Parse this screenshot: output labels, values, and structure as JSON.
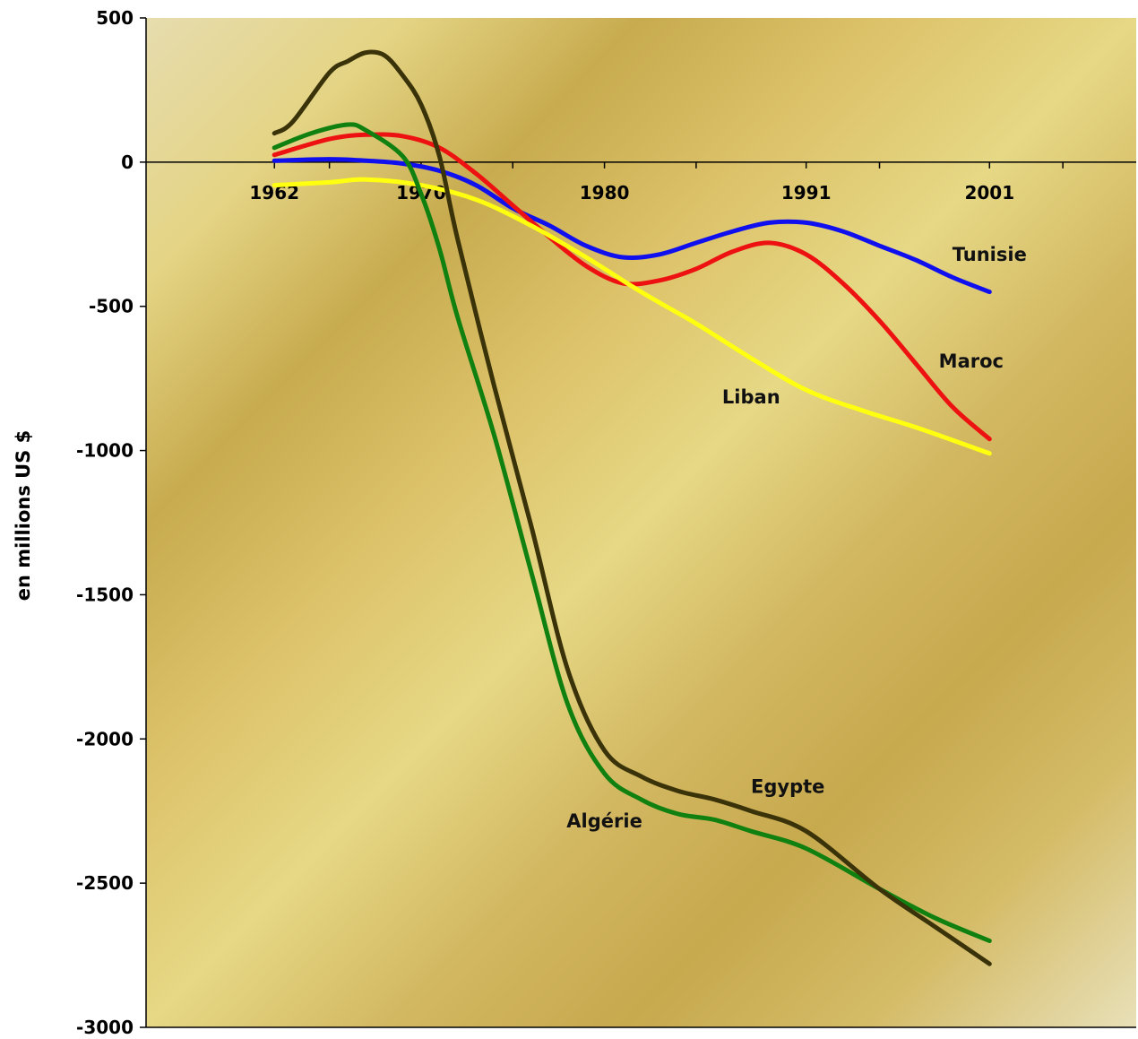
{
  "chart_data": {
    "type": "line",
    "title": "",
    "xlabel": "",
    "ylabel": "en millions US $",
    "xlim": [
      1955,
      2009
    ],
    "ylim": [
      -3000,
      500
    ],
    "y_ticks": [
      500,
      0,
      -500,
      -1000,
      -1500,
      -2000,
      -2500,
      -3000
    ],
    "x_tick_labels": [
      {
        "x": 1962,
        "label": "1962"
      },
      {
        "x": 1970,
        "label": "1970"
      },
      {
        "x": 1980,
        "label": "1980"
      },
      {
        "x": 1991,
        "label": "1991"
      },
      {
        "x": 2001,
        "label": "2001"
      }
    ],
    "x_minor_ticks": [
      1965,
      1975,
      1985,
      1995,
      2005
    ],
    "grid": false,
    "series": [
      {
        "name": "Tunisie",
        "color": "#1010ee",
        "x": [
          1962,
          1965,
          1967,
          1969,
          1971,
          1973,
          1975,
          1977,
          1979,
          1981,
          1983,
          1985,
          1987,
          1989,
          1991,
          1993,
          1995,
          1997,
          1999,
          2001
        ],
        "y": [
          5,
          10,
          5,
          -5,
          -30,
          -80,
          -160,
          -220,
          -290,
          -330,
          -320,
          -280,
          -240,
          -210,
          -210,
          -240,
          -290,
          -340,
          -400,
          -450
        ]
      },
      {
        "name": "Maroc",
        "color": "#ee1111",
        "x": [
          1962,
          1965,
          1967,
          1969,
          1971,
          1973,
          1975,
          1977,
          1979,
          1981,
          1983,
          1985,
          1987,
          1989,
          1991,
          1993,
          1995,
          1997,
          1999,
          2001
        ],
        "y": [
          25,
          80,
          95,
          90,
          50,
          -40,
          -150,
          -260,
          -360,
          -420,
          -410,
          -370,
          -310,
          -280,
          -320,
          -420,
          -550,
          -700,
          -850,
          -960
        ]
      },
      {
        "name": "Liban",
        "color": "#ffff10",
        "x": [
          1962,
          1965,
          1967,
          1970,
          1973,
          1976,
          1979,
          1982,
          1985,
          1988,
          1991,
          1994,
          1997,
          2001
        ],
        "y": [
          -80,
          -70,
          -60,
          -80,
          -130,
          -220,
          -330,
          -450,
          -560,
          -680,
          -790,
          -860,
          -920,
          -1010
        ]
      },
      {
        "name": "Algérie",
        "color": "#108010",
        "x": [
          1962,
          1964,
          1966,
          1967,
          1969,
          1970,
          1971,
          1972,
          1974,
          1976,
          1978,
          1980,
          1982,
          1984,
          1986,
          1988,
          1991,
          1995,
          1998,
          2001
        ],
        "y": [
          50,
          100,
          130,
          110,
          20,
          -110,
          -300,
          -540,
          -950,
          -1420,
          -1880,
          -2120,
          -2210,
          -2260,
          -2280,
          -2320,
          -2380,
          -2520,
          -2620,
          -2700
        ]
      },
      {
        "name": "Egypte",
        "color": "#3a3208",
        "x": [
          1962,
          1963,
          1965,
          1966,
          1967,
          1968,
          1969,
          1970,
          1971,
          1972,
          1974,
          1976,
          1978,
          1980,
          1982,
          1984,
          1986,
          1988,
          1991,
          1995,
          1998,
          2001
        ],
        "y": [
          100,
          140,
          310,
          350,
          380,
          370,
          300,
          200,
          20,
          -270,
          -780,
          -1260,
          -1760,
          -2040,
          -2130,
          -2180,
          -2210,
          -2250,
          -2320,
          -2520,
          -2650,
          -2780
        ]
      }
    ],
    "annotations": [
      {
        "text": "Tunisie",
        "x": 2001,
        "y": -320
      },
      {
        "text": "Maroc",
        "x": 2000,
        "y": -690
      },
      {
        "text": "Liban",
        "x": 1988,
        "y": -815
      },
      {
        "text": "Egypte",
        "x": 1990,
        "y": -2165
      },
      {
        "text": "Algérie",
        "x": 1980,
        "y": -2285
      }
    ]
  }
}
